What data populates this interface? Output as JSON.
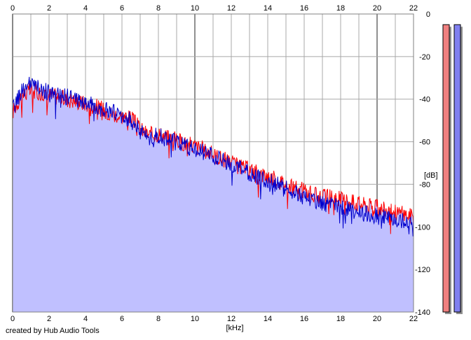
{
  "footer": {
    "credit": "created by Hub Audio Tools"
  },
  "chart_data": {
    "type": "area",
    "xlabel": "[kHz]",
    "ylabel": "[dB]",
    "xlim": [
      0,
      22
    ],
    "ylim": [
      -140,
      0
    ],
    "x_ticks": [
      0,
      2,
      4,
      6,
      8,
      10,
      12,
      14,
      16,
      18,
      20,
      22
    ],
    "y_ticks": [
      0,
      -20,
      -40,
      -60,
      -80,
      -100,
      -120,
      -140
    ],
    "grid": true,
    "colors": {
      "red": "#ff0000",
      "blue": "#0000cc",
      "fill": "#c0c0ff",
      "grid": "#a8a8a8",
      "grid_major": "#909090"
    },
    "series": [
      {
        "color": "red",
        "x": [
          0,
          0.5,
          1,
          1.5,
          2,
          2.5,
          3,
          3.5,
          4,
          4.5,
          5,
          5.5,
          6,
          6.5,
          7,
          7.5,
          8,
          8.5,
          9,
          9.5,
          10,
          10.5,
          11,
          11.5,
          12,
          12.5,
          13,
          13.5,
          14,
          14.5,
          15,
          15.5,
          16,
          16.5,
          17,
          17.5,
          18,
          18.5,
          19,
          19.5,
          20,
          20.5,
          21,
          21.5,
          22
        ],
        "values": [
          -46,
          -38,
          -36,
          -37,
          -38,
          -39,
          -40,
          -41,
          -42,
          -43,
          -45,
          -47,
          -48,
          -49,
          -54,
          -57,
          -56,
          -58,
          -59,
          -61,
          -62,
          -64,
          -66,
          -68,
          -70,
          -72,
          -73,
          -75,
          -76,
          -78,
          -80,
          -82,
          -83,
          -85,
          -86,
          -86,
          -87,
          -88,
          -89,
          -90,
          -91,
          -92,
          -93,
          -94,
          -95
        ]
      },
      {
        "color": "blue",
        "x": [
          0,
          0.5,
          1,
          1.5,
          2,
          2.5,
          3,
          3.5,
          4,
          4.5,
          5,
          5.5,
          6,
          6.5,
          7,
          7.5,
          8,
          8.5,
          9,
          9.5,
          10,
          10.5,
          11,
          11.5,
          12,
          12.5,
          13,
          13.5,
          14,
          14.5,
          15,
          15.5,
          16,
          16.5,
          17,
          17.5,
          18,
          18.5,
          19,
          19.5,
          20,
          20.5,
          21,
          21.5,
          22
        ],
        "values": [
          -45,
          -36,
          -33,
          -35,
          -37,
          -38,
          -39,
          -40,
          -42,
          -43,
          -45,
          -46,
          -48,
          -50,
          -55,
          -58,
          -57,
          -59,
          -60,
          -62,
          -63,
          -65,
          -67,
          -69,
          -71,
          -73,
          -75,
          -77,
          -78,
          -80,
          -82,
          -84,
          -86,
          -87,
          -89,
          -90,
          -91,
          -92,
          -93,
          -94,
          -95,
          -96,
          -97,
          -97,
          -98
        ]
      }
    ],
    "level_meters": [
      {
        "color": "#f08080",
        "value": -5
      },
      {
        "color": "#8080f0",
        "value": -5
      }
    ]
  }
}
